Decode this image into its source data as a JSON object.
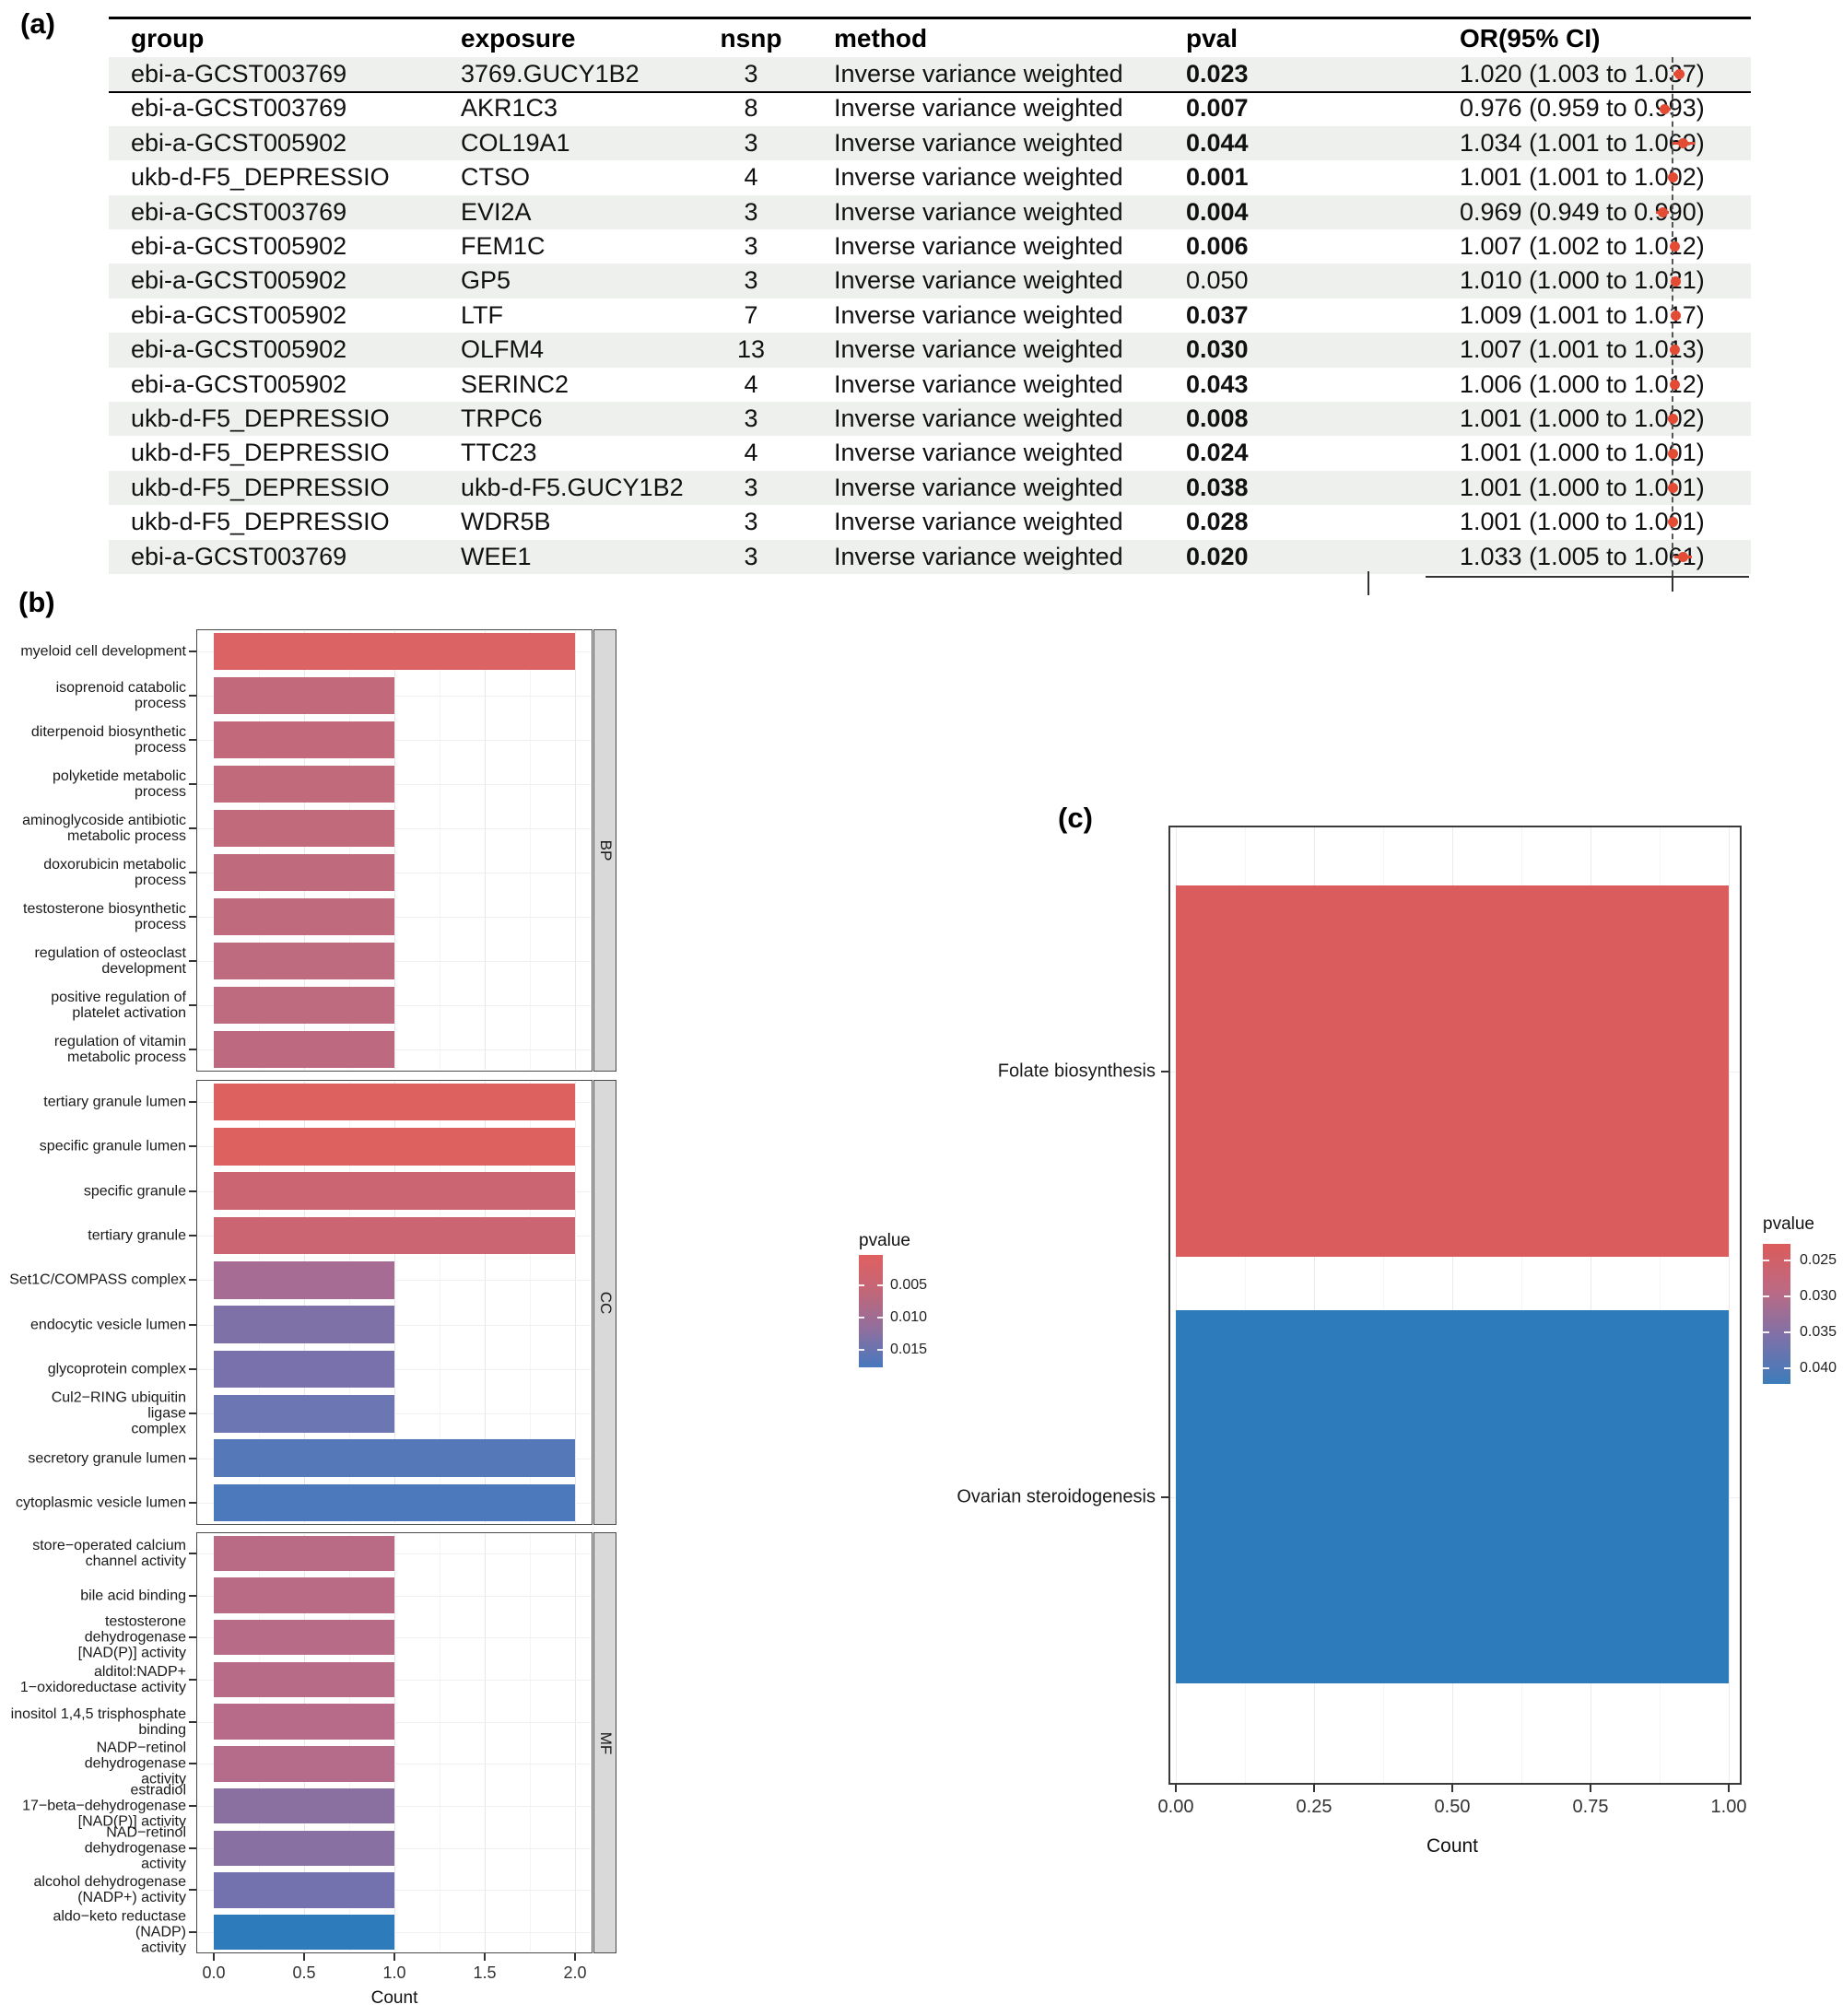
{
  "panel_labels": {
    "a": "(a)",
    "b": "(b)",
    "c": "(c)"
  },
  "chart_data": [
    {
      "id": "panel_a_mr_forest_table",
      "type": "table",
      "columns": [
        "group",
        "exposure",
        "nsnp",
        "method",
        "pval",
        "OR(95% CI)"
      ],
      "forest": {
        "reference_or": 1.0,
        "dot_color": "#E34B34",
        "reference_line_style": "dashed"
      },
      "rows": [
        {
          "group": "ebi-a-GCST003769",
          "exposure": "3769.GUCY1B2",
          "nsnp": "3",
          "method": "Inverse variance weighted",
          "pval": "0.023",
          "pval_bold": true,
          "or_text": "1.020 (1.003 to 1.037)",
          "or": 1.02,
          "ci_low": 1.003,
          "ci_high": 1.037
        },
        {
          "group": "ebi-a-GCST003769",
          "exposure": "AKR1C3",
          "nsnp": "8",
          "method": "Inverse variance weighted",
          "pval": "0.007",
          "pval_bold": true,
          "or_text": "0.976 (0.959 to 0.993)",
          "or": 0.976,
          "ci_low": 0.959,
          "ci_high": 0.993
        },
        {
          "group": "ebi-a-GCST005902",
          "exposure": "COL19A1",
          "nsnp": "3",
          "method": "Inverse variance weighted",
          "pval": "0.044",
          "pval_bold": true,
          "or_text": "1.034 (1.001 to 1.069)",
          "or": 1.034,
          "ci_low": 1.001,
          "ci_high": 1.069
        },
        {
          "group": "ukb-d-F5_DEPRESSIO",
          "exposure": "CTSO",
          "nsnp": "4",
          "method": "Inverse variance weighted",
          "pval": "0.001",
          "pval_bold": true,
          "or_text": "1.001 (1.001 to 1.002)",
          "or": 1.001,
          "ci_low": 1.001,
          "ci_high": 1.002
        },
        {
          "group": "ebi-a-GCST003769",
          "exposure": "EVI2A",
          "nsnp": "3",
          "method": "Inverse variance weighted",
          "pval": "0.004",
          "pval_bold": true,
          "or_text": "0.969 (0.949 to 0.990)",
          "or": 0.969,
          "ci_low": 0.949,
          "ci_high": 0.99
        },
        {
          "group": "ebi-a-GCST005902",
          "exposure": "FEM1C",
          "nsnp": "3",
          "method": "Inverse variance weighted",
          "pval": "0.006",
          "pval_bold": true,
          "or_text": "1.007 (1.002 to 1.012)",
          "or": 1.007,
          "ci_low": 1.002,
          "ci_high": 1.012
        },
        {
          "group": "ebi-a-GCST005902",
          "exposure": "GP5",
          "nsnp": "3",
          "method": "Inverse variance weighted",
          "pval": "0.050",
          "pval_bold": false,
          "or_text": "1.010 (1.000 to 1.021)",
          "or": 1.01,
          "ci_low": 1.0,
          "ci_high": 1.021
        },
        {
          "group": "ebi-a-GCST005902",
          "exposure": "LTF",
          "nsnp": "7",
          "method": "Inverse variance weighted",
          "pval": "0.037",
          "pval_bold": true,
          "or_text": "1.009 (1.001 to 1.017)",
          "or": 1.009,
          "ci_low": 1.001,
          "ci_high": 1.017
        },
        {
          "group": "ebi-a-GCST005902",
          "exposure": "OLFM4",
          "nsnp": "13",
          "method": "Inverse variance weighted",
          "pval": "0.030",
          "pval_bold": true,
          "or_text": "1.007 (1.001 to 1.013)",
          "or": 1.007,
          "ci_low": 1.001,
          "ci_high": 1.013
        },
        {
          "group": "ebi-a-GCST005902",
          "exposure": "SERINC2",
          "nsnp": "4",
          "method": "Inverse variance weighted",
          "pval": "0.043",
          "pval_bold": true,
          "or_text": "1.006 (1.000 to 1.012)",
          "or": 1.006,
          "ci_low": 1.0,
          "ci_high": 1.012
        },
        {
          "group": "ukb-d-F5_DEPRESSIO",
          "exposure": "TRPC6",
          "nsnp": "3",
          "method": "Inverse variance weighted",
          "pval": "0.008",
          "pval_bold": true,
          "or_text": "1.001 (1.000 to 1.002)",
          "or": 1.001,
          "ci_low": 1.0,
          "ci_high": 1.002
        },
        {
          "group": "ukb-d-F5_DEPRESSIO",
          "exposure": "TTC23",
          "nsnp": "4",
          "method": "Inverse variance weighted",
          "pval": "0.024",
          "pval_bold": true,
          "or_text": "1.001 (1.000 to 1.001)",
          "or": 1.001,
          "ci_low": 1.0,
          "ci_high": 1.001
        },
        {
          "group": "ukb-d-F5_DEPRESSIO",
          "exposure": "ukb-d-F5.GUCY1B2",
          "nsnp": "3",
          "method": "Inverse variance weighted",
          "pval": "0.038",
          "pval_bold": true,
          "or_text": "1.001 (1.000 to 1.001)",
          "or": 1.001,
          "ci_low": 1.0,
          "ci_high": 1.001
        },
        {
          "group": "ukb-d-F5_DEPRESSIO",
          "exposure": "WDR5B",
          "nsnp": "3",
          "method": "Inverse variance weighted",
          "pval": "0.028",
          "pval_bold": true,
          "or_text": "1.001 (1.000 to 1.001)",
          "or": 1.001,
          "ci_low": 1.0,
          "ci_high": 1.001
        },
        {
          "group": "ebi-a-GCST003769",
          "exposure": "WEE1",
          "nsnp": "3",
          "method": "Inverse variance weighted",
          "pval": "0.020",
          "pval_bold": true,
          "or_text": "1.033 (1.005 to 1.061)",
          "or": 1.033,
          "ci_low": 1.005,
          "ci_high": 1.061
        }
      ]
    },
    {
      "id": "panel_b_go_enrichment",
      "type": "bar",
      "orientation": "horizontal",
      "xlabel": "Count",
      "xticks": [
        "0.0",
        "0.5",
        "1.0",
        "1.5",
        "2.0"
      ],
      "xlim": [
        0,
        2.15
      ],
      "grid": true,
      "legend": {
        "title": "pvalue",
        "ticks": [
          "0.005",
          "0.010",
          "0.015"
        ],
        "gradient": [
          "#E06060",
          "#C16779",
          "#8F6F9E",
          "#4678BE"
        ]
      },
      "facets": [
        {
          "strip": "BP",
          "items": [
            {
              "label": "myeloid cell development",
              "count": 2,
              "color": "#DB6363"
            },
            {
              "label": "isoprenoid catabolic process",
              "count": 1,
              "color": "#C2697B"
            },
            {
              "label": "diterpenoid biosynthetic\nprocess",
              "count": 1,
              "color": "#C2697B"
            },
            {
              "label": "polyketide metabolic process",
              "count": 1,
              "color": "#C16A7C"
            },
            {
              "label": "aminoglycoside antibiotic\nmetabolic process",
              "count": 1,
              "color": "#C16A7C"
            },
            {
              "label": "doxorubicin metabolic process",
              "count": 1,
              "color": "#C06A7D"
            },
            {
              "label": "testosterone biosynthetic\nprocess",
              "count": 1,
              "color": "#C06A7D"
            },
            {
              "label": "regulation of osteoclast\ndevelopment",
              "count": 1,
              "color": "#BE6A7F"
            },
            {
              "label": "positive regulation of\nplatelet activation",
              "count": 1,
              "color": "#BE6A7F"
            },
            {
              "label": "regulation of vitamin\nmetabolic process",
              "count": 1,
              "color": "#BD6A80"
            }
          ]
        },
        {
          "strip": "CC",
          "items": [
            {
              "label": "tertiary granule lumen",
              "count": 2,
              "color": "#DD625F"
            },
            {
              "label": "specific granule lumen",
              "count": 2,
              "color": "#DD625F"
            },
            {
              "label": "specific granule",
              "count": 2,
              "color": "#CB6571"
            },
            {
              "label": "tertiary granule",
              "count": 2,
              "color": "#CB6571"
            },
            {
              "label": "Set1C/COMPASS complex",
              "count": 1,
              "color": "#A76C94"
            },
            {
              "label": "endocytic vesicle lumen",
              "count": 1,
              "color": "#7E71A8"
            },
            {
              "label": "glycoprotein complex",
              "count": 1,
              "color": "#7971AC"
            },
            {
              "label": "Cul2−RING ubiquitin ligase\ncomplex",
              "count": 1,
              "color": "#6C76B3"
            },
            {
              "label": "secretory granule lumen",
              "count": 2,
              "color": "#5478B8"
            },
            {
              "label": "cytoplasmic vesicle lumen",
              "count": 2,
              "color": "#4B79BB"
            }
          ]
        },
        {
          "strip": "MF",
          "items": [
            {
              "label": "store−operated calcium\nchannel activity",
              "count": 1,
              "color": "#B96B85"
            },
            {
              "label": "bile acid binding",
              "count": 1,
              "color": "#B96B85"
            },
            {
              "label": "testosterone dehydrogenase\n[NAD(P)] activity",
              "count": 1,
              "color": "#B86B86"
            },
            {
              "label": "alditol:NADP+\n1−oxidoreductase activity",
              "count": 1,
              "color": "#B86B86"
            },
            {
              "label": "inositol 1,4,5 trisphosphate\nbinding",
              "count": 1,
              "color": "#B76B88"
            },
            {
              "label": "NADP−retinol dehydrogenase\nactivity",
              "count": 1,
              "color": "#B56B8A"
            },
            {
              "label": "estradiol\n17−beta−dehydrogenase\n[NAD(P)] activity",
              "count": 1,
              "color": "#8A70A1"
            },
            {
              "label": "NAD−retinol dehydrogenase\nactivity",
              "count": 1,
              "color": "#8870A3"
            },
            {
              "label": "alcohol dehydrogenase\n(NADP+) activity",
              "count": 1,
              "color": "#7472AE"
            },
            {
              "label": "aldo−keto reductase (NADP)\nactivity",
              "count": 1,
              "color": "#2E7BBB"
            }
          ]
        }
      ]
    },
    {
      "id": "panel_c_kegg_enrichment",
      "type": "bar",
      "orientation": "horizontal",
      "categories": [
        "Folate biosynthesis",
        "Ovarian steroidogenesis"
      ],
      "values": [
        1,
        1
      ],
      "colors": [
        "#DB5C5C",
        "#2E7BBB"
      ],
      "xlabel": "Count",
      "xticks": [
        "0.00",
        "0.25",
        "0.50",
        "0.75",
        "1.00"
      ],
      "xlim": [
        0,
        1.02
      ],
      "grid": true,
      "legend": {
        "title": "pvalue",
        "ticks": [
          "0.025",
          "0.030",
          "0.035",
          "0.040"
        ],
        "gradient": [
          "#DC5B5B",
          "#BC6A83",
          "#7D71A9",
          "#3D7CBB"
        ]
      }
    }
  ]
}
